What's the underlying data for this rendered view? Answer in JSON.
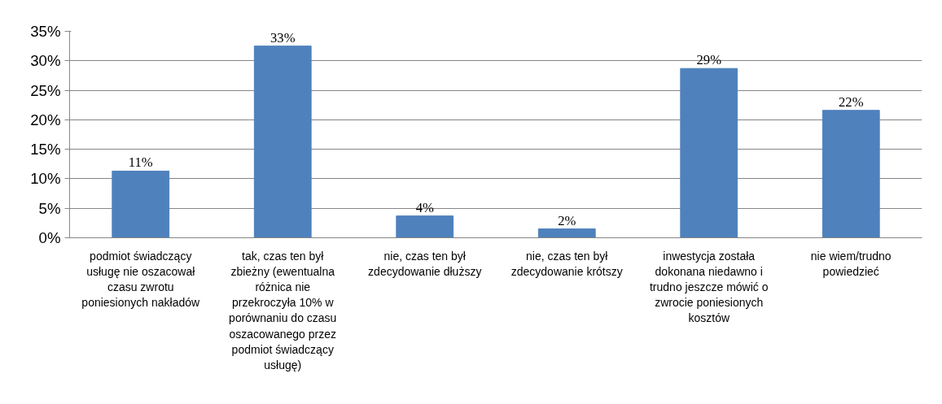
{
  "chart_data": {
    "type": "bar",
    "categories": [
      "podmiot świadczący usługę nie oszacował czasu zwrotu poniesionych nakładów",
      "tak, czas ten był zbieżny (ewentualna różnica nie przekroczyła 10% w porównaniu do czasu oszacowanego przez podmiot świadczący usługę)",
      "nie, czas ten był zdecydowanie dłuższy",
      "nie, czas ten był zdecydowanie krótszy",
      "inwestycja została dokonana niedawno i trudno jeszcze mówić o zwrocie poniesionych kosztów",
      "nie wiem/trudno powiedzieć"
    ],
    "values": [
      11.3,
      32.5,
      3.7,
      1.5,
      28.7,
      21.6
    ],
    "value_labels": [
      "11%",
      "33%",
      "4%",
      "2%",
      "29%",
      "22%"
    ],
    "color": "#4f81bd",
    "ylim": [
      0,
      35
    ],
    "yticks": [
      {
        "value": 0,
        "label": "0%"
      },
      {
        "value": 5,
        "label": "5%"
      },
      {
        "value": 10,
        "label": "10%"
      },
      {
        "value": 15,
        "label": "15%"
      },
      {
        "value": 20,
        "label": "20%"
      },
      {
        "value": 25,
        "label": "25%"
      },
      {
        "value": 30,
        "label": "30%"
      },
      {
        "value": 35,
        "label": "35%"
      }
    ],
    "grid": "y"
  }
}
